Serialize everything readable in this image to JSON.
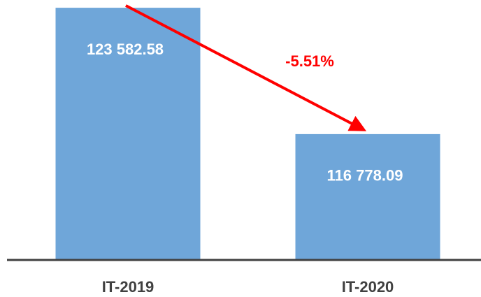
{
  "chart_data": {
    "type": "bar",
    "categories": [
      "IT-2019",
      "IT-2020"
    ],
    "values": [
      123582.58,
      116778.09
    ],
    "value_labels": [
      "123 582.58",
      "116 778.09"
    ],
    "color": "#6fa6d9",
    "ylim": [
      110000,
      124000
    ],
    "annotation": "-5.51%",
    "annotation_color": "#ff0000"
  }
}
